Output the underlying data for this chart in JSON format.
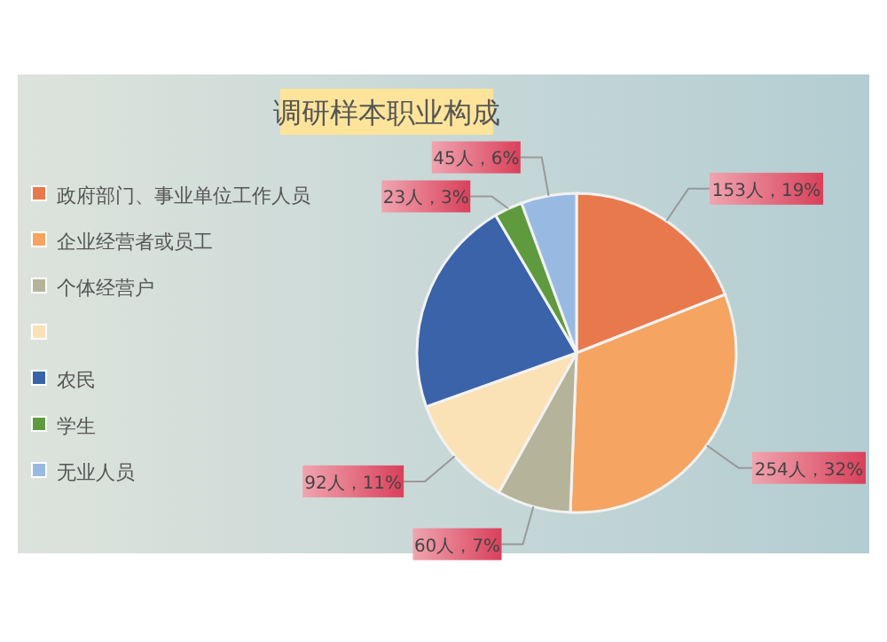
{
  "chart_data": {
    "type": "pie",
    "title": "调研样本职业构成",
    "categories": [
      "政府部门、事业单位工作人员",
      "企业经营者或员工",
      "个体经营户",
      null,
      "农民",
      "学生",
      "无业人员"
    ],
    "values": [
      153,
      254,
      60,
      92,
      177,
      23,
      45
    ],
    "colors": [
      "#e8794d",
      "#f5a462",
      "#b5b49a",
      "#fbe1b6",
      "#3a63a9",
      "#5f9b3e",
      "#98bae2"
    ],
    "value_labels": [
      "153人，19%",
      "254人，32%",
      "60人，7%",
      "92人，11%",
      null,
      "23人，3%",
      "45人，6%"
    ],
    "legend": "left"
  }
}
